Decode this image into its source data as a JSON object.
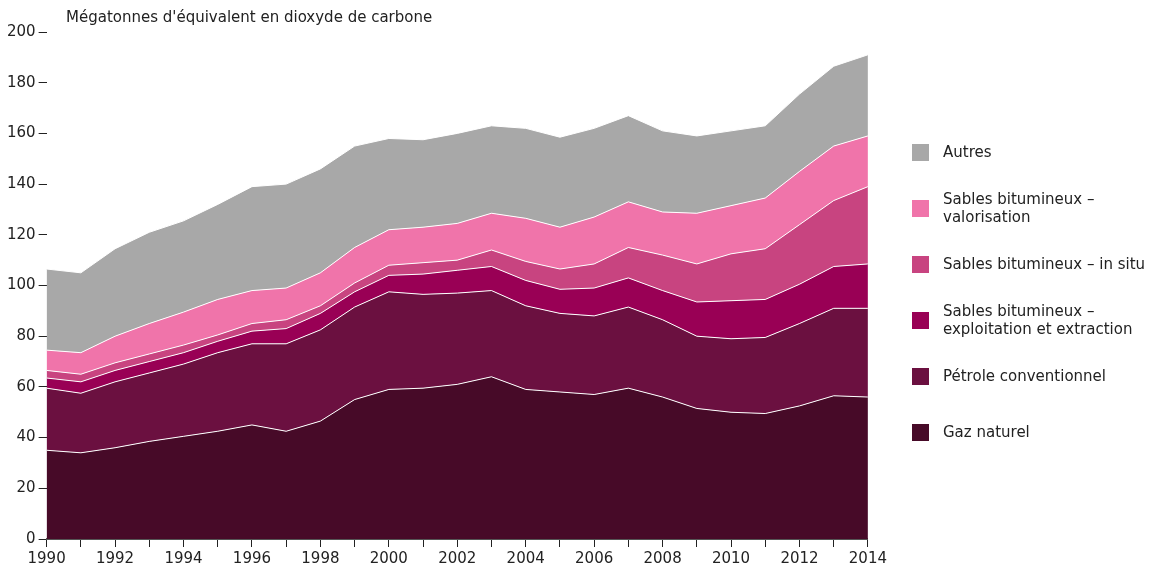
{
  "chart_data": {
    "type": "area",
    "ylabel": "Mégatonnes d'équivalent en dioxyde de carbone",
    "stacked": true,
    "legend": "right",
    "grid": false,
    "x": [
      1990,
      1991,
      1992,
      1993,
      1994,
      1995,
      1996,
      1997,
      1998,
      1999,
      2000,
      2001,
      2002,
      2003,
      2004,
      2005,
      2006,
      2007,
      2008,
      2009,
      2010,
      2011,
      2012,
      2013,
      2014
    ],
    "xlim": [
      1990,
      2014
    ],
    "xticks": [
      1990,
      {
        "value": 1991,
        "label": null
      },
      1992,
      {
        "value": 1993,
        "label": null
      },
      1994,
      {
        "value": 1995,
        "label": null
      },
      1996,
      {
        "value": 1997,
        "label": null
      },
      1998,
      {
        "value": 1999,
        "label": null
      },
      2000,
      {
        "value": 2001,
        "label": null
      },
      2002,
      {
        "value": 2003,
        "label": null
      },
      2004,
      {
        "value": 2005,
        "label": null
      },
      2006,
      {
        "value": 2007,
        "label": null
      },
      2008,
      {
        "value": 2009,
        "label": null
      },
      2010,
      {
        "value": 2011,
        "label": null
      },
      2012,
      {
        "value": 2013,
        "label": null
      },
      2014
    ],
    "ylim": [
      0,
      200
    ],
    "yticks": [
      0,
      20,
      40,
      60,
      80,
      100,
      120,
      140,
      160,
      180,
      200
    ],
    "series": [
      {
        "name": "Gaz naturel",
        "color": "#470a28",
        "values": [
          35,
          34,
          36,
          38.5,
          40.5,
          42.5,
          45,
          42.5,
          46.5,
          55,
          59,
          59.5,
          61,
          64,
          59,
          58,
          57,
          59.5,
          56,
          51.5,
          50,
          49.5,
          52.5,
          56.5,
          56
        ]
      },
      {
        "name": "Pétrole conventionnel",
        "color": "#6b1040",
        "values": [
          24.5,
          23.5,
          26,
          27,
          28.5,
          31,
          32,
          34.5,
          36,
          36.5,
          38.5,
          37,
          36,
          34,
          33,
          31,
          31,
          32,
          30.5,
          28.5,
          29,
          30,
          32.5,
          34.5,
          35
        ]
      },
      {
        "name": "Sables bitumineux – exploitation et extraction",
        "color": "#990055",
        "values": [
          4,
          4.5,
          4.5,
          4.5,
          4.5,
          4.5,
          5,
          6,
          6.5,
          6,
          6.5,
          8,
          9,
          9.5,
          10,
          9.5,
          11,
          11.5,
          11.5,
          13.5,
          15,
          15,
          15.5,
          16.5,
          17.5
        ]
      },
      {
        "name": "Sables bitumineux – in situ",
        "color": "#c84480",
        "values": [
          3,
          3,
          3,
          3,
          3,
          2.5,
          3,
          3.5,
          3,
          3.5,
          4,
          4.5,
          4,
          6.5,
          7.5,
          8,
          9.5,
          12,
          14,
          15,
          18.5,
          20,
          23.5,
          26,
          30.5
        ]
      },
      {
        "name": "Sables bitumineux – valorisation",
        "color": "#f074aa",
        "values": [
          8,
          8.5,
          10.5,
          12,
          13,
          14,
          13,
          12.5,
          13,
          14,
          14,
          14,
          14.5,
          14.5,
          17,
          16.5,
          18.5,
          18,
          17,
          20,
          19,
          20,
          21,
          21.5,
          20
        ]
      },
      {
        "name": "Autres",
        "color": "#a8a8a8",
        "values": [
          32,
          31.5,
          34.5,
          36,
          36,
          37.5,
          41,
          41,
          41,
          40,
          36,
          34.5,
          35.5,
          34.5,
          35.5,
          35.5,
          35,
          34,
          32,
          30.5,
          29.5,
          28.5,
          30.5,
          31.5,
          32
        ]
      }
    ]
  }
}
